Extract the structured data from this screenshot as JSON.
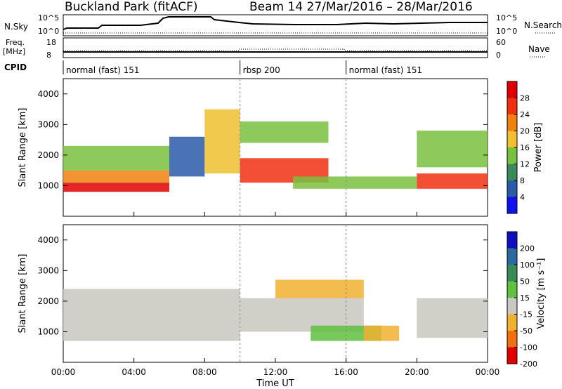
{
  "header": {
    "station": "Buckland Park (fitACF)",
    "beam_and_dates": "Beam 14  27/Mar/2016 – 28/Mar/2016"
  },
  "strip": {
    "nsky_label": "N.Sky",
    "nsearch_label": "N.Search",
    "freq_label_line1": "Freq.",
    "freq_label_line2": "[MHz]",
    "nave_label": "Nave",
    "cpid_label": "CPID",
    "nsky_ticks": [
      "10^5",
      "10^0"
    ],
    "nsearch_ticks": [
      "10^5",
      "10^0"
    ],
    "freq_ticks": [
      "18",
      "8"
    ],
    "nave_ticks": [
      "60",
      "0"
    ],
    "cpid_segments": [
      {
        "label": "normal (fast) 151",
        "start_h": 0,
        "end_h": 10
      },
      {
        "label": "rbsp 200",
        "start_h": 10,
        "end_h": 16
      },
      {
        "label": "normal (fast) 151",
        "start_h": 16,
        "end_h": 24
      }
    ]
  },
  "time_axis": {
    "title": "Time UT",
    "ticks": [
      "00:00",
      "04:00",
      "08:00",
      "12:00",
      "16:00",
      "20:00",
      "00:00"
    ]
  },
  "power_panel": {
    "ylabel": "Slant Range [km]",
    "yticks": [
      "1000",
      "2000",
      "3000",
      "4000"
    ],
    "colorbar_label": "Power [dB]",
    "colorbar_ticks": [
      "4",
      "8",
      "12",
      "16",
      "20",
      "24",
      "28"
    ],
    "colors": [
      "#1010f0",
      "#2a5aa8",
      "#3a8a5a",
      "#7ac040",
      "#f0c030",
      "#f08010",
      "#f03010",
      "#e00000"
    ]
  },
  "velocity_panel": {
    "ylabel": "Slant Range [km]",
    "yticks": [
      "1000",
      "2000",
      "3000",
      "4000"
    ],
    "colorbar_label": "Velocity [m s⁻¹]",
    "colorbar_ticks": [
      "200",
      "100",
      "50",
      "15",
      "-15",
      "-50",
      "-100",
      "-200"
    ],
    "colors": [
      "#1010c0",
      "#2a6aa0",
      "#3a8a5a",
      "#60c040",
      "#c8c8c0",
      "#f0b030",
      "#f07010",
      "#e00000"
    ]
  },
  "chart_data": {
    "type": "heatmap",
    "x_unit": "hours UT",
    "xlim": [
      0,
      24
    ],
    "ylim": [
      0,
      4500
    ],
    "power_regions": [
      {
        "t0": 0,
        "t1": 6,
        "r0": 800,
        "r1": 1100,
        "level": 7
      },
      {
        "t0": 0,
        "t1": 6,
        "r0": 1100,
        "r1": 1500,
        "level": 5
      },
      {
        "t0": 0,
        "t1": 6,
        "r0": 1500,
        "r1": 2300,
        "level": 3
      },
      {
        "t0": 6,
        "t1": 8,
        "r0": 1300,
        "r1": 2600,
        "level": 1
      },
      {
        "t0": 8,
        "t1": 10,
        "r0": 1400,
        "r1": 3500,
        "level": 4
      },
      {
        "t0": 10,
        "t1": 15,
        "r0": 1100,
        "r1": 1900,
        "level": 6
      },
      {
        "t0": 10,
        "t1": 15,
        "r0": 2400,
        "r1": 3100,
        "level": 3
      },
      {
        "t0": 13,
        "t1": 20,
        "r0": 900,
        "r1": 1300,
        "level": 3
      },
      {
        "t0": 20,
        "t1": 24,
        "r0": 900,
        "r1": 1400,
        "level": 6
      },
      {
        "t0": 20,
        "t1": 24,
        "r0": 1600,
        "r1": 2800,
        "level": 3
      }
    ],
    "velocity_regions": [
      {
        "t0": 0,
        "t1": 10,
        "r0": 700,
        "r1": 2400,
        "level": 4
      },
      {
        "t0": 10,
        "t1": 17,
        "r0": 1000,
        "r1": 2100,
        "level": 4
      },
      {
        "t0": 12,
        "t1": 17,
        "r0": 2100,
        "r1": 2700,
        "level": 5
      },
      {
        "t0": 14,
        "t1": 18,
        "r0": 700,
        "r1": 1200,
        "level": 3
      },
      {
        "t0": 17,
        "t1": 19,
        "r0": 700,
        "r1": 1200,
        "level": 5
      },
      {
        "t0": 20,
        "t1": 24,
        "r0": 800,
        "r1": 2100,
        "level": 4
      }
    ]
  }
}
